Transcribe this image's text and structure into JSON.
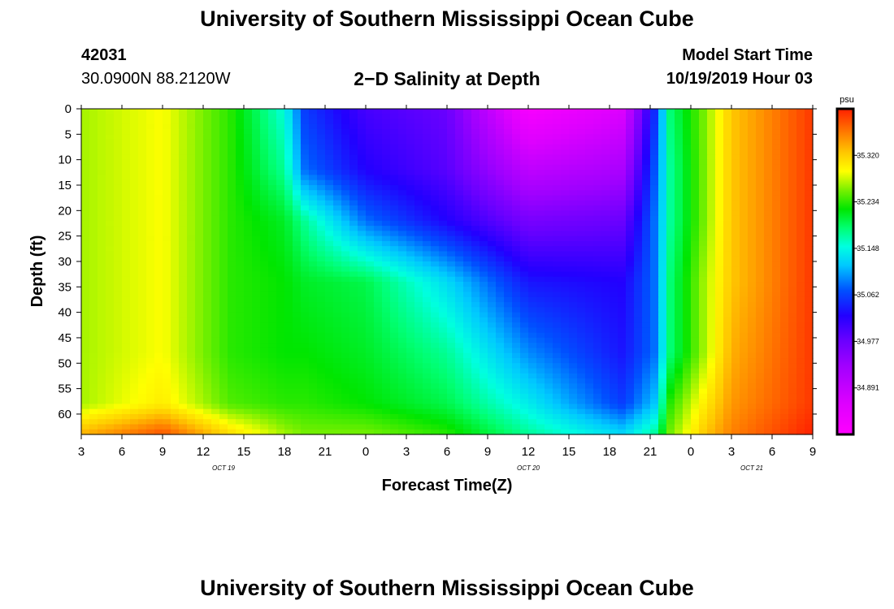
{
  "title_top": "University of Southern Mississippi Ocean Cube",
  "title_bottom": "University of Southern Mississippi Ocean Cube",
  "station": {
    "id": "42031",
    "location": "30.0900N 88.2120W"
  },
  "model": {
    "label": "Model Start Time",
    "start": "10/19/2019 Hour 03"
  },
  "colorbar": {
    "unit": "psu",
    "tick_labels": [
      "35.320",
      "35.234",
      "35.148",
      "35.062",
      "34.977",
      "34.891"
    ],
    "range": [
      34.85,
      35.37
    ],
    "stops": [
      {
        "v": 34.85,
        "c": "#ff00ff"
      },
      {
        "v": 34.9,
        "c": "#dd00ff"
      },
      {
        "v": 34.96,
        "c": "#a000ff"
      },
      {
        "v": 35.0,
        "c": "#6a00ff"
      },
      {
        "v": 35.04,
        "c": "#2200ff"
      },
      {
        "v": 35.08,
        "c": "#0050ff"
      },
      {
        "v": 35.12,
        "c": "#00c8ff"
      },
      {
        "v": 35.15,
        "c": "#00ffe0"
      },
      {
        "v": 35.18,
        "c": "#00ff70"
      },
      {
        "v": 35.21,
        "c": "#00e600"
      },
      {
        "v": 35.24,
        "c": "#78f000"
      },
      {
        "v": 35.27,
        "c": "#ffff00"
      },
      {
        "v": 35.3,
        "c": "#ffc800"
      },
      {
        "v": 35.33,
        "c": "#ff8000"
      },
      {
        "v": 35.37,
        "c": "#ff2000"
      }
    ]
  },
  "chart_data": {
    "type": "heatmap",
    "title": "2−D Salinity at Depth",
    "xlabel": "Forecast Time(Z)",
    "ylabel": "Depth (ft)",
    "x_ticks": [
      "3",
      "6",
      "9",
      "12",
      "15",
      "18",
      "21",
      "0",
      "3",
      "6",
      "9",
      "12",
      "15",
      "18",
      "21",
      "0",
      "3",
      "6",
      "9"
    ],
    "x_hours": [
      0,
      3,
      6,
      9,
      12,
      15,
      18,
      21,
      24,
      27,
      30,
      33,
      36,
      39,
      42,
      45,
      48,
      51,
      54
    ],
    "date_labels": [
      {
        "text": "OCT 19",
        "hour": 10.5
      },
      {
        "text": "OCT 20",
        "hour": 33
      },
      {
        "text": "OCT 21",
        "hour": 49.5
      }
    ],
    "y_ticks": [
      "0",
      "5",
      "10",
      "15",
      "20",
      "25",
      "30",
      "35",
      "40",
      "45",
      "50",
      "55",
      "60"
    ],
    "y_values": [
      0,
      5,
      10,
      15,
      20,
      25,
      30,
      35,
      40,
      45,
      50,
      55,
      60
    ],
    "ylim": [
      0,
      64
    ],
    "xlim_hours": [
      0,
      54
    ],
    "value_unit": "psu",
    "value_range": [
      34.85,
      35.37
    ],
    "depths": [
      0,
      12,
      22,
      34,
      48,
      58,
      64
    ],
    "times": [
      0,
      6,
      11,
      15,
      16.5,
      21,
      27,
      33,
      40,
      42.3,
      43.5,
      46,
      48,
      54
    ],
    "salinity": [
      [
        35.25,
        35.27,
        35.22,
        35.15,
        35.07,
        35.02,
        35.0,
        34.86,
        34.9,
        35.06,
        35.18,
        35.24,
        35.3,
        35.36
      ],
      [
        35.25,
        35.27,
        35.22,
        35.17,
        35.09,
        35.04,
        35.01,
        34.93,
        34.95,
        35.08,
        35.17,
        35.24,
        35.3,
        35.36
      ],
      [
        35.25,
        35.27,
        35.22,
        35.2,
        35.17,
        35.09,
        35.04,
        34.99,
        35.0,
        35.09,
        35.17,
        35.24,
        35.3,
        35.36
      ],
      [
        35.25,
        35.27,
        35.22,
        35.21,
        35.2,
        35.19,
        35.13,
        35.05,
        35.04,
        35.09,
        35.18,
        35.25,
        35.3,
        35.36
      ],
      [
        35.25,
        35.27,
        35.22,
        35.21,
        35.21,
        35.2,
        35.17,
        35.1,
        35.05,
        35.09,
        35.18,
        35.25,
        35.31,
        35.36
      ],
      [
        35.25,
        35.28,
        35.23,
        35.22,
        35.22,
        35.21,
        35.19,
        35.14,
        35.07,
        35.12,
        35.22,
        35.28,
        35.32,
        35.36
      ],
      [
        35.31,
        35.35,
        35.29,
        35.25,
        35.24,
        35.24,
        35.22,
        35.17,
        35.13,
        35.17,
        35.24,
        35.3,
        35.33,
        35.37
      ]
    ]
  }
}
